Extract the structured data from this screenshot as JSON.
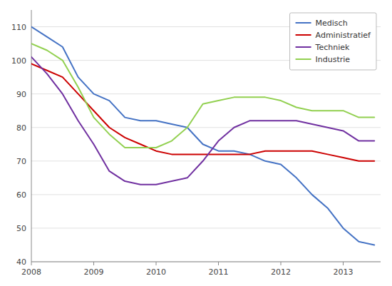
{
  "chart_data": {
    "type": "line",
    "x": [
      2008.0,
      2008.25,
      2008.5,
      2008.75,
      2009.0,
      2009.25,
      2009.5,
      2009.75,
      2010.0,
      2010.25,
      2010.5,
      2010.75,
      2011.0,
      2011.25,
      2011.5,
      2011.75,
      2012.0,
      2012.25,
      2012.5,
      2012.75,
      2013.0,
      2013.25,
      2013.5
    ],
    "series": [
      {
        "name": "Medisch",
        "color": "#4472C4",
        "values": [
          110,
          107,
          104,
          95,
          90,
          88,
          83,
          82,
          82,
          81,
          80,
          75,
          73,
          73,
          72,
          70,
          69,
          65,
          60,
          56,
          50,
          46,
          45
        ]
      },
      {
        "name": "Administratief",
        "color": "#CC0000",
        "values": [
          99,
          97,
          95,
          90,
          85,
          80,
          77,
          75,
          73,
          72,
          72,
          72,
          72,
          72,
          72,
          73,
          73,
          73,
          73,
          72,
          71,
          70,
          70
        ]
      },
      {
        "name": "Techniek",
        "color": "#7030A0",
        "values": [
          101,
          96,
          90,
          82,
          75,
          67,
          64,
          63,
          63,
          64,
          65,
          70,
          76,
          80,
          82,
          82,
          82,
          82,
          81,
          80,
          79,
          76,
          76
        ]
      },
      {
        "name": "Industrie",
        "color": "#92D050",
        "values": [
          105,
          103,
          100,
          92,
          83,
          78,
          74,
          74,
          74,
          76,
          80,
          87,
          88,
          89,
          89,
          89,
          88,
          86,
          85,
          85,
          85,
          83,
          83
        ]
      }
    ],
    "xlim": [
      2008.0,
      2013.6
    ],
    "ylim": [
      40,
      115
    ],
    "xticks": [
      2008,
      2009,
      2010,
      2011,
      2012,
      2013
    ],
    "yticks": [
      40,
      50,
      60,
      70,
      80,
      90,
      100,
      110
    ],
    "grid": true,
    "legend": "upper-right"
  }
}
